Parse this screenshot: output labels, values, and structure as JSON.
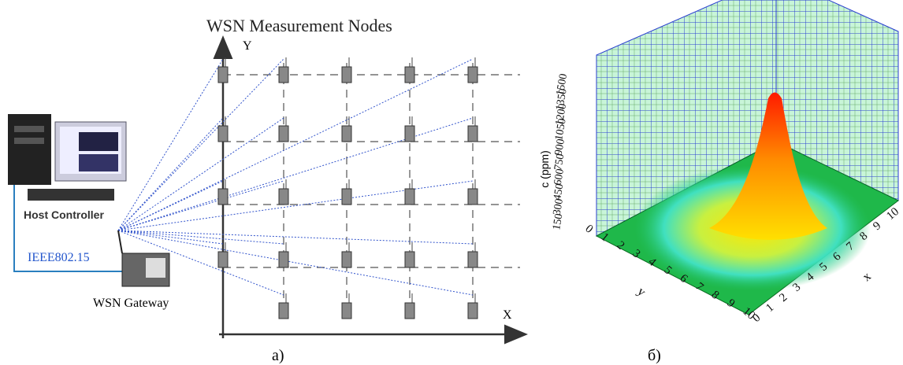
{
  "left_panel": {
    "title": "WSN Measurement Nodes",
    "y_axis": "Y",
    "x_axis": "X",
    "host": "Host Controller",
    "protocol": "IEEE802.15",
    "gateway": "WSN Gateway",
    "caption": "a)"
  },
  "right_panel": {
    "z_label": "c (ppm)",
    "z_ticks": [
      150,
      300,
      450,
      600,
      750,
      900,
      1050,
      1200,
      1350,
      1500
    ],
    "y_label": "y",
    "y_ticks": [
      0,
      1,
      2,
      3,
      4,
      5,
      6,
      7,
      8,
      9,
      10
    ],
    "x_label": "x",
    "x_ticks": [
      0,
      1,
      2,
      3,
      4,
      5,
      6,
      7,
      8,
      9,
      10
    ],
    "caption": "б)"
  }
}
